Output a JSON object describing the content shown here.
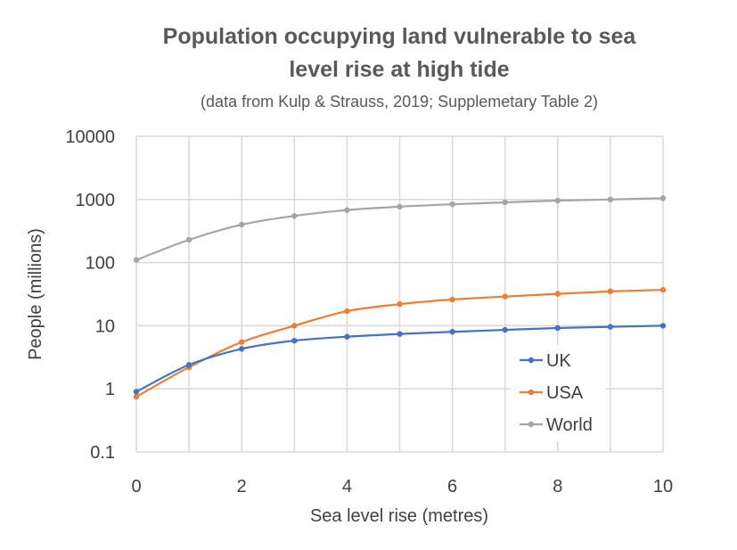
{
  "chart_data": {
    "type": "line",
    "title_lines": [
      "Population occupying land vulnerable to sea",
      "level rise at high tide"
    ],
    "subtitle": "(data from  Kulp & Strauss, 2019; Supplemetary Table 2)",
    "xlabel": "Sea level rise (metres)",
    "ylabel": "People (millions)",
    "xlim": [
      0,
      10
    ],
    "ylim": [
      0.1,
      10000
    ],
    "yscale": "log",
    "x_ticks": [
      "0",
      "2",
      "4",
      "6",
      "8",
      "10"
    ],
    "y_ticks": [
      "0.1",
      "1",
      "10",
      "100",
      "1000",
      "10000"
    ],
    "x": [
      0,
      1,
      2,
      3,
      4,
      5,
      6,
      7,
      8,
      9,
      10
    ],
    "series": [
      {
        "name": "UK",
        "color": "#4472C4",
        "values": [
          0.9,
          2.4,
          4.3,
          5.8,
          6.7,
          7.4,
          8.0,
          8.6,
          9.2,
          9.6,
          10.0
        ]
      },
      {
        "name": "USA",
        "color": "#ED7D31",
        "values": [
          0.75,
          2.2,
          5.5,
          10.0,
          17.0,
          22.0,
          26.0,
          29.0,
          32.0,
          35.0,
          37.0
        ]
      },
      {
        "name": "World",
        "color": "#A5A5A5",
        "values": [
          110,
          230,
          400,
          550,
          680,
          770,
          840,
          900,
          960,
          1000,
          1050
        ]
      }
    ],
    "grid": true,
    "legend": "inside-bottom-right",
    "grid_color": "#D9D9D9"
  }
}
